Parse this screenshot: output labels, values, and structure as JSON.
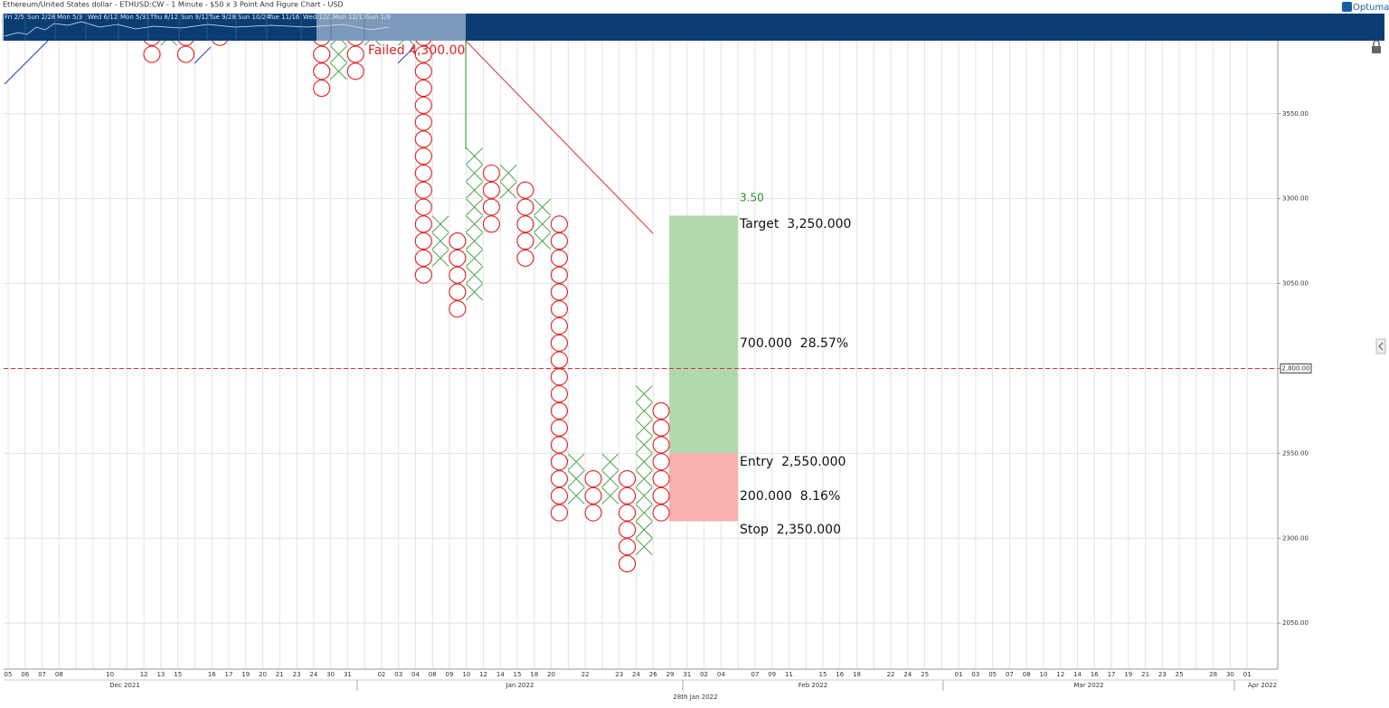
{
  "chart_data": {
    "type": "pointfigure",
    "title": "Ethereum/United States dollar - ETHUSD:CW - 1 Minute - $50 x 3 Point And Figure Chart - USD",
    "brand": "Optuma",
    "navigator_labels": [
      "Fri 2/5",
      "Sun 2/28",
      "Mon 5/3",
      "Wed 6/12",
      "Mon 5/31",
      "Thu 8/12",
      "Sun 9/12",
      "Tue 9/28",
      "Sun 10/24",
      "Tue 11/16",
      "Wed 12/1",
      "Mon 12/13",
      "Sun 1/9"
    ],
    "box_size": 50,
    "x_color": "#3a9a3a",
    "o_color": "#e02020",
    "columns": [
      {
        "type": "O",
        "low": 3700,
        "high": 3800
      },
      {
        "type": "X",
        "low": 3750,
        "high": 3800
      },
      {
        "type": "O",
        "low": 3700,
        "high": 3800
      },
      null,
      {
        "type": "O",
        "low": 3750,
        "high": 3800
      },
      null,
      null,
      null,
      null,
      null,
      {
        "type": "O",
        "low": 3600,
        "high": 3800
      },
      {
        "type": "X",
        "low": 3650,
        "high": 3800
      },
      {
        "type": "O",
        "low": 3650,
        "high": 3800
      },
      {
        "type": "X",
        "low": 3750,
        "high": 3800
      },
      null,
      {
        "type": "X",
        "low": 3750,
        "high": 3800
      },
      {
        "type": "O",
        "low": 3050,
        "high": 3800
      },
      {
        "type": "X",
        "low": 3100,
        "high": 3250
      },
      {
        "type": "O",
        "low": 2950,
        "high": 3200
      },
      {
        "type": "X",
        "low": 3000,
        "high": 3450
      },
      {
        "type": "O",
        "low": 3200,
        "high": 3400
      },
      {
        "type": "X",
        "low": 3300,
        "high": 3400
      },
      {
        "type": "O",
        "low": 3100,
        "high": 3350
      },
      {
        "type": "X",
        "low": 3150,
        "high": 3300
      },
      {
        "type": "O",
        "low": 2350,
        "high": 3250
      },
      {
        "type": "X",
        "low": 2400,
        "high": 2550
      },
      {
        "type": "O",
        "low": 2350,
        "high": 2500
      },
      {
        "type": "X",
        "low": 2400,
        "high": 2550
      },
      {
        "type": "O",
        "low": 2200,
        "high": 2500
      },
      {
        "type": "X",
        "low": 2250,
        "high": 2750
      },
      {
        "type": "O",
        "low": 2350,
        "high": 2700
      }
    ],
    "categories": [
      "05",
      "06",
      "07",
      "08",
      null,
      null,
      "10",
      null,
      "12",
      "13",
      "15",
      null,
      "16",
      "17",
      "19",
      "20",
      "21",
      "23",
      "24",
      "30",
      "31",
      null,
      "02",
      "03",
      "04",
      "08",
      "09",
      "10",
      "12",
      "14",
      "15",
      "18",
      "20",
      null,
      "22",
      null,
      "23",
      "24",
      "26",
      "29",
      "31",
      "02",
      "04",
      null,
      "07",
      "09",
      "11",
      null,
      "15",
      "16",
      "18",
      null,
      "22",
      "24",
      "25",
      null,
      "01",
      "03",
      "05",
      "07",
      "08",
      "10",
      "12",
      "14",
      "16",
      "17",
      "19",
      "21",
      "23",
      "25",
      null,
      "28",
      "30",
      "01"
    ],
    "months": [
      "Dec 2021",
      "Jan 2022",
      "Feb 2022",
      "Mar 2022",
      "Apr 2022"
    ],
    "cursor_date": "28th Jan 2022",
    "ylim": [
      1920,
      3765
    ],
    "yticks": [
      {
        "value": 2050,
        "label": "2050.00"
      },
      {
        "value": 2300,
        "label": "2300.00"
      },
      {
        "value": 2550,
        "label": "2550.00"
      },
      {
        "value": 2800,
        "label": "2800.00"
      },
      {
        "value": 3050,
        "label": "3050.00"
      },
      {
        "value": 3300,
        "label": "3300.00"
      },
      {
        "value": 3550,
        "label": "3550.00"
      }
    ],
    "grid": true,
    "current_price": {
      "value": 2800,
      "label": "2,800.00"
    },
    "annotation": "Failed 4,300.00",
    "position": {
      "target": 3250,
      "entry": 2550,
      "stop": 2350,
      "ratio_label": "3.50",
      "target_label": "Target  3,250.000",
      "reward_label": "700.000  28.57%",
      "entry_label": "Entry  2,550.000",
      "risk_label": "200.000  8.16%",
      "stop_label": "Stop  2,350.000"
    }
  }
}
